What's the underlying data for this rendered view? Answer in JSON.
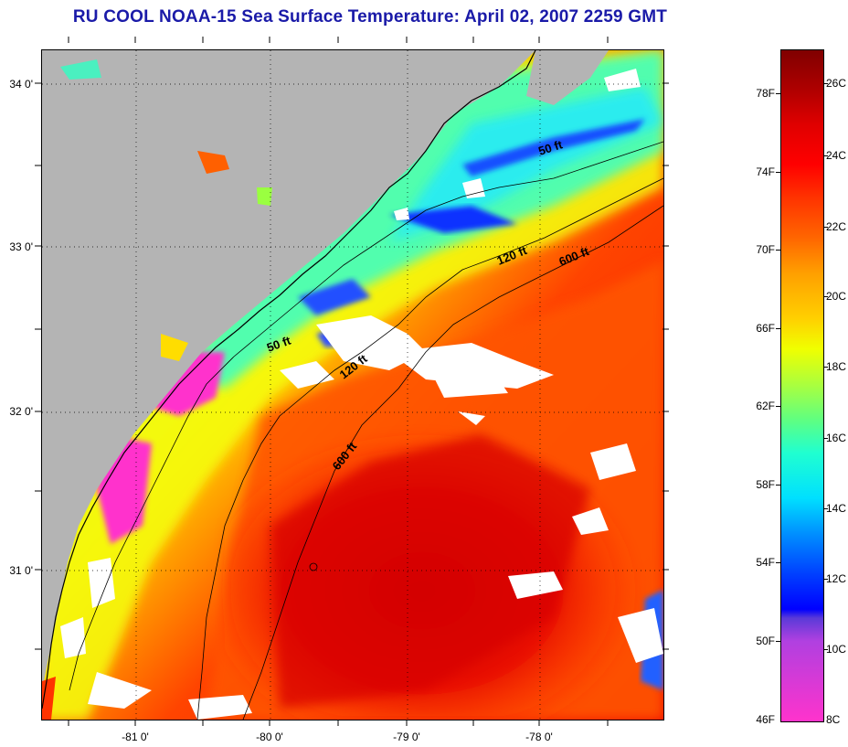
{
  "title": "RU COOL  NOAA-15  Sea Surface Temperature:  April 02, 2007 2259 GMT",
  "axes": {
    "lat_labels": [
      "34 0'",
      "33 0'",
      "32 0'",
      "31 0'"
    ],
    "lon_labels": [
      "-81 0'",
      "-80 0'",
      "-79 0'",
      "-78 0'"
    ]
  },
  "isobaths": {
    "inshore_50": "50 ft",
    "offshore_50": "50 ft",
    "mid_120": "120 ft",
    "south_120": "120 ft",
    "north_600": "600 ft",
    "south_600": "600 ft"
  },
  "colorbar": {
    "fahrenheit": [
      "78F",
      "74F",
      "70F",
      "66F",
      "62F",
      "58F",
      "54F",
      "50F",
      "46F"
    ],
    "celsius": [
      "26C",
      "24C",
      "22C",
      "20C",
      "18C",
      "16C",
      "14C",
      "12C",
      "10C",
      "8C"
    ],
    "range_c": [
      8,
      27
    ],
    "colors": {
      "cold": "#ff33cc",
      "mid": "#f0ff00",
      "warm": "#800000"
    }
  },
  "colors": {
    "land": "#b4b4b4",
    "cloud": "#ffffff",
    "title": "#1a1aa8"
  }
}
